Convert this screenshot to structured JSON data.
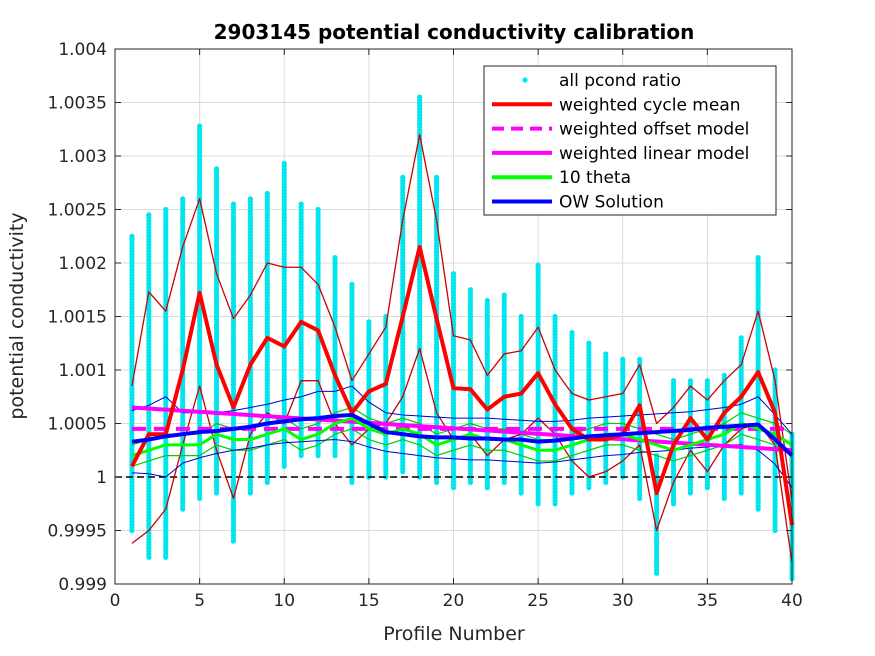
{
  "chart_data": {
    "type": "line",
    "title": "2903145 potential conductivity calibration",
    "xlabel": "Profile Number",
    "ylabel": "potential conductivity",
    "xlim": [
      0,
      40
    ],
    "ylim": [
      0.999,
      1.004
    ],
    "xticks": [
      0,
      5,
      10,
      15,
      20,
      25,
      30,
      35,
      40
    ],
    "xtick_labels": [
      "0",
      "5",
      "10",
      "15",
      "20",
      "25",
      "30",
      "35",
      "40"
    ],
    "yticks": [
      0.999,
      0.9995,
      1,
      1.0005,
      1.001,
      1.0015,
      1.002,
      1.0025,
      1.003,
      1.0035,
      1.004
    ],
    "ytick_labels": [
      "0.999",
      "0.9995",
      "1",
      "1.0005",
      "1.001",
      "1.0015",
      "1.002",
      "1.0025",
      "1.003",
      "1.0035",
      "1.004"
    ],
    "grid": true,
    "legend_position": "top-right",
    "reference_line": {
      "y": 1,
      "style": "dashed",
      "color": "#000000"
    },
    "scatter_ranges": {
      "name": "all pcond ratio",
      "color": "#00e5ee",
      "x": [
        1,
        2,
        3,
        4,
        5,
        6,
        7,
        8,
        9,
        10,
        11,
        12,
        13,
        14,
        15,
        16,
        17,
        18,
        19,
        20,
        21,
        22,
        23,
        24,
        25,
        26,
        27,
        28,
        29,
        30,
        31,
        32,
        33,
        34,
        35,
        36,
        37,
        38,
        39,
        40
      ],
      "min": [
        0.9995,
        0.99925,
        0.99925,
        0.9997,
        0.9998,
        0.99985,
        0.9994,
        0.99985,
        0.99995,
        1.0001,
        1.0002,
        1.0002,
        1.0002,
        0.99995,
        1.0,
        1.0,
        1.00005,
        1.0,
        0.99995,
        0.9999,
        0.99995,
        0.9999,
        0.99995,
        0.99985,
        0.99975,
        0.99975,
        0.99985,
        0.9999,
        0.99995,
        1.0,
        0.9998,
        0.9991,
        0.99975,
        0.99985,
        0.9999,
        0.9998,
        0.99985,
        0.9997,
        0.9995,
        0.99905
      ],
      "max": [
        1.00225,
        1.00245,
        1.0025,
        1.0026,
        1.00328,
        1.00288,
        1.00255,
        1.0026,
        1.00265,
        1.00293,
        1.00255,
        1.0025,
        1.00205,
        1.0018,
        1.00145,
        1.0015,
        1.0028,
        1.00355,
        1.0028,
        1.0019,
        1.00175,
        1.00165,
        1.0017,
        1.0015,
        1.00198,
        1.0015,
        1.00135,
        1.00125,
        1.00115,
        1.0011,
        1.0011,
        1.0002,
        1.0009,
        1.0009,
        1.0009,
        1.00095,
        1.0013,
        1.00205,
        1.001,
        1.0004
      ]
    },
    "series": [
      {
        "name": "weighted cycle mean",
        "color": "#ff0000",
        "width": 4,
        "style": "solid",
        "x": [
          1,
          2,
          3,
          4,
          5,
          6,
          7,
          8,
          9,
          10,
          11,
          12,
          13,
          14,
          15,
          16,
          17,
          18,
          19,
          20,
          21,
          22,
          23,
          24,
          25,
          26,
          27,
          28,
          29,
          30,
          31,
          32,
          33,
          34,
          35,
          36,
          37,
          38,
          39,
          40
        ],
        "values": [
          1.0001,
          1.0004,
          1.0004,
          1.001,
          1.00172,
          1.00105,
          1.00065,
          1.00105,
          1.0013,
          1.00122,
          1.00145,
          1.00137,
          1.00095,
          1.0006,
          1.0008,
          1.00087,
          1.0015,
          1.00215,
          1.00148,
          1.00083,
          1.00082,
          1.00063,
          1.00075,
          1.00078,
          1.00097,
          1.00068,
          1.00045,
          1.00035,
          1.00035,
          1.0004,
          1.00067,
          0.99985,
          1.0003,
          1.00055,
          1.00035,
          1.0006,
          1.00075,
          1.00098,
          1.0006,
          0.99955
        ]
      },
      {
        "name": "weighted offset model",
        "color": "#ff00ff",
        "width": 4,
        "style": "dashed",
        "x": [
          1,
          40
        ],
        "values": [
          1.00045,
          1.00045
        ]
      },
      {
        "name": "weighted linear model",
        "color": "#ff00ff",
        "width": 4,
        "style": "solid",
        "x": [
          1,
          40
        ],
        "values": [
          1.00065,
          1.00025
        ]
      },
      {
        "name": "10 theta",
        "color": "#00ff00",
        "width": 3,
        "style": "solid",
        "x": [
          1,
          2,
          3,
          4,
          5,
          6,
          7,
          8,
          9,
          10,
          11,
          12,
          13,
          14,
          15,
          16,
          17,
          18,
          19,
          20,
          21,
          22,
          23,
          24,
          25,
          26,
          27,
          28,
          29,
          30,
          31,
          32,
          33,
          34,
          35,
          36,
          37,
          38,
          39,
          40
        ],
        "values": [
          1.0002,
          1.00025,
          1.0003,
          1.0003,
          1.0003,
          1.0004,
          1.00035,
          1.00035,
          1.0004,
          1.00045,
          1.00035,
          1.0004,
          1.0005,
          1.00055,
          1.00045,
          1.0004,
          1.00045,
          1.0004,
          1.0003,
          1.00035,
          1.0004,
          1.00035,
          1.00035,
          1.0003,
          1.00025,
          1.00025,
          1.0003,
          1.00035,
          1.0004,
          1.0004,
          1.00035,
          1.0003,
          1.00025,
          1.0003,
          1.00035,
          1.0004,
          1.0005,
          1.00045,
          1.0004,
          1.0003
        ]
      },
      {
        "name": "OW Solution",
        "color": "#0000ff",
        "width": 4,
        "style": "solid",
        "x": [
          1,
          2,
          3,
          4,
          5,
          6,
          7,
          8,
          9,
          10,
          11,
          12,
          13,
          14,
          15,
          16,
          17,
          18,
          19,
          20,
          21,
          22,
          23,
          24,
          25,
          26,
          27,
          28,
          29,
          30,
          31,
          32,
          33,
          34,
          35,
          36,
          37,
          38,
          39,
          40
        ],
        "values": [
          1.00033,
          1.00035,
          1.00038,
          1.0004,
          1.00042,
          1.00043,
          1.00045,
          1.00047,
          1.0005,
          1.00052,
          1.00054,
          1.00055,
          1.00057,
          1.00058,
          1.0005,
          1.00042,
          1.0004,
          1.00038,
          1.00037,
          1.00037,
          1.00036,
          1.00036,
          1.00035,
          1.00035,
          1.00033,
          1.00034,
          1.00036,
          1.00038,
          1.00039,
          1.0004,
          1.00041,
          1.00042,
          1.00043,
          1.00044,
          1.00046,
          1.00047,
          1.00048,
          1.00049,
          1.00035,
          1.0002
        ]
      }
    ],
    "envelopes": [
      {
        "name": "weighted cycle mean upper",
        "color": "#cc0000",
        "width": 1.3,
        "values": [
          1.00085,
          1.00173,
          1.00155,
          1.00215,
          1.0026,
          1.0019,
          1.00148,
          1.0017,
          1.002,
          1.00196,
          1.00196,
          1.0018,
          1.0014,
          1.0009,
          1.00115,
          1.0014,
          1.0024,
          1.0032,
          1.0024,
          1.00132,
          1.00128,
          1.00095,
          1.00115,
          1.00118,
          1.0014,
          1.001,
          1.00078,
          1.00072,
          1.00075,
          1.00078,
          1.00105,
          1.0005,
          1.00065,
          1.00085,
          1.00072,
          1.0009,
          1.00105,
          1.00155,
          1.0009,
          0.99978
        ]
      },
      {
        "name": "weighted cycle mean lower",
        "color": "#cc0000",
        "width": 1.3,
        "values": [
          0.99938,
          0.9995,
          0.9997,
          1.0003,
          1.00085,
          1.00025,
          0.9998,
          1.0004,
          1.0006,
          1.0005,
          1.0009,
          1.0009,
          1.0005,
          1.0003,
          1.00045,
          1.0005,
          1.00075,
          1.0012,
          1.0006,
          1.00035,
          1.0004,
          1.0002,
          1.00035,
          1.0004,
          1.00055,
          1.0004,
          1.00015,
          1.0,
          1.00005,
          1.00015,
          1.0003,
          0.9995,
          0.99995,
          1.00025,
          1.00005,
          1.0003,
          1.00045,
          1.0005,
          1.0003,
          0.9992
        ]
      },
      {
        "name": "10 theta upper",
        "color": "#00cc00",
        "width": 1.2,
        "values": [
          1.0003,
          1.00035,
          1.0004,
          1.0004,
          1.0004,
          1.0005,
          1.00045,
          1.00045,
          1.0005,
          1.00055,
          1.00045,
          1.0005,
          1.0006,
          1.00065,
          1.00055,
          1.0005,
          1.00055,
          1.0005,
          1.0004,
          1.00045,
          1.0005,
          1.00045,
          1.00045,
          1.0004,
          1.00035,
          1.00035,
          1.0004,
          1.00045,
          1.0005,
          1.0005,
          1.00045,
          1.0004,
          1.00035,
          1.0004,
          1.00045,
          1.0005,
          1.0006,
          1.00055,
          1.0005,
          1.0004
        ]
      },
      {
        "name": "10 theta lower",
        "color": "#00cc00",
        "width": 1.2,
        "values": [
          1.0001,
          1.00015,
          1.0002,
          1.0002,
          1.0002,
          1.0003,
          1.00025,
          1.00025,
          1.0003,
          1.00035,
          1.00025,
          1.0003,
          1.0004,
          1.00045,
          1.00035,
          1.0003,
          1.00035,
          1.0003,
          1.0002,
          1.00025,
          1.0003,
          1.00025,
          1.00025,
          1.0002,
          1.00015,
          1.00015,
          1.0002,
          1.00025,
          1.0003,
          1.0003,
          1.00025,
          1.0002,
          1.00015,
          1.0002,
          1.00025,
          1.0003,
          1.0004,
          1.00035,
          1.0003,
          1.0002
        ]
      },
      {
        "name": "OW Solution upper",
        "color": "#0000cc",
        "width": 1,
        "values": [
          1.00062,
          1.00067,
          1.00075,
          1.0006,
          1.0006,
          1.0006,
          1.00062,
          1.00065,
          1.00068,
          1.00072,
          1.00075,
          1.0008,
          1.0008,
          1.00085,
          1.0007,
          1.0006,
          1.00058,
          1.00057,
          1.00056,
          1.00055,
          1.00055,
          1.00055,
          1.00054,
          1.00053,
          1.00052,
          1.00052,
          1.00053,
          1.00055,
          1.00056,
          1.00057,
          1.00058,
          1.00059,
          1.0006,
          1.00061,
          1.00063,
          1.00065,
          1.00068,
          1.00075,
          1.00058,
          1.0004
        ]
      },
      {
        "name": "OW Solution lower",
        "color": "#0000cc",
        "width": 1,
        "values": [
          1.00004,
          1.00003,
          1.0,
          1.00013,
          1.00018,
          1.00022,
          1.00025,
          1.00027,
          1.0003,
          1.00032,
          1.00033,
          1.00034,
          1.00035,
          1.00033,
          1.00028,
          1.00024,
          1.00022,
          1.0002,
          1.00018,
          1.00017,
          1.00016,
          1.00016,
          1.00015,
          1.00014,
          1.00013,
          1.00014,
          1.00016,
          1.00018,
          1.0002,
          1.00021,
          1.00023,
          1.00024,
          1.00025,
          1.00027,
          1.00028,
          1.0003,
          1.0003,
          1.00025,
          1.00012,
          0.9999
        ]
      }
    ],
    "legend": [
      {
        "label": "all pcond ratio",
        "marker": "dot",
        "color": "#00e5ee"
      },
      {
        "label": "weighted cycle mean",
        "marker": "line",
        "color": "#ff0000"
      },
      {
        "label": "weighted offset model",
        "marker": "dashed",
        "color": "#ff00ff"
      },
      {
        "label": "weighted linear model",
        "marker": "line",
        "color": "#ff00ff"
      },
      {
        "label": "10 theta",
        "marker": "line",
        "color": "#00ff00"
      },
      {
        "label": "OW Solution",
        "marker": "line",
        "color": "#0000ff"
      }
    ]
  }
}
